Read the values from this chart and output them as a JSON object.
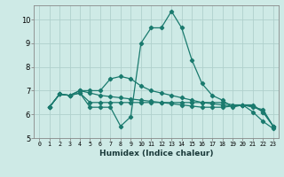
{
  "title": "",
  "xlabel": "Humidex (Indice chaleur)",
  "ylabel": "",
  "xlim": [
    -0.5,
    23.5
  ],
  "ylim": [
    5,
    10.6
  ],
  "yticks": [
    5,
    6,
    7,
    8,
    9,
    10
  ],
  "xticks": [
    0,
    1,
    2,
    3,
    4,
    5,
    6,
    7,
    8,
    9,
    10,
    11,
    12,
    13,
    14,
    15,
    16,
    17,
    18,
    19,
    20,
    21,
    22,
    23
  ],
  "bg_color": "#ceeae6",
  "grid_color": "#b0d0cc",
  "line_color": "#1a7a6e",
  "lines": [
    [
      6.3,
      6.85,
      6.8,
      6.9,
      6.3,
      6.3,
      6.3,
      5.5,
      5.9,
      9.0,
      9.65,
      9.65,
      10.35,
      9.65,
      8.3,
      7.3,
      6.8,
      6.6,
      6.3,
      6.4,
      6.1,
      5.7,
      5.4
    ],
    [
      6.3,
      6.85,
      6.8,
      6.9,
      6.5,
      6.5,
      6.5,
      6.5,
      6.5,
      6.5,
      6.5,
      6.5,
      6.5,
      6.5,
      6.5,
      6.5,
      6.5,
      6.5,
      6.4,
      6.4,
      6.3,
      6.2,
      5.5
    ],
    [
      6.3,
      6.85,
      6.8,
      7.0,
      6.9,
      6.8,
      6.75,
      6.7,
      6.65,
      6.6,
      6.55,
      6.5,
      6.45,
      6.4,
      6.35,
      6.3,
      6.3,
      6.3,
      6.35,
      6.4,
      6.35,
      6.1,
      5.5
    ],
    [
      6.3,
      6.85,
      6.8,
      7.0,
      7.0,
      7.0,
      7.5,
      7.6,
      7.5,
      7.2,
      7.0,
      6.9,
      6.8,
      6.7,
      6.6,
      6.5,
      6.45,
      6.4,
      6.35,
      6.4,
      6.4,
      6.1,
      5.5
    ]
  ]
}
